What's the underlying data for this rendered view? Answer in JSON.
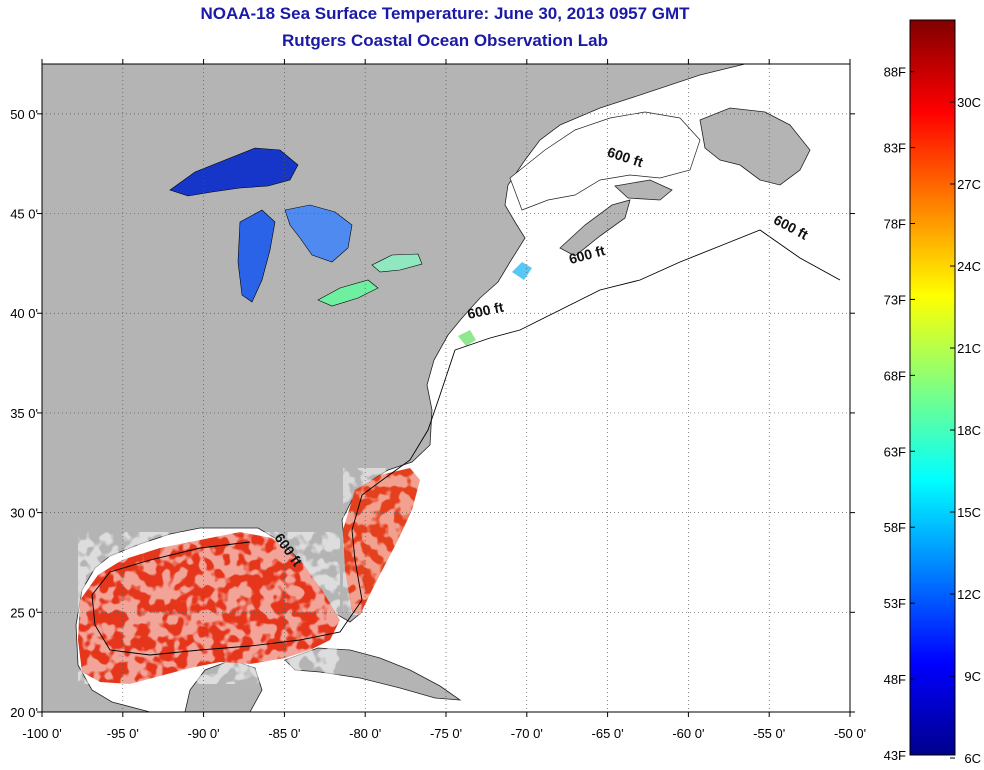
{
  "title": {
    "line1": "NOAA-18 Sea Surface Temperature:  June 30, 2013 0957 GMT",
    "line2": "Rutgers Coastal Ocean Observation Lab"
  },
  "map": {
    "lon_range": [
      -100,
      -50
    ],
    "lat_range": [
      20,
      52.5
    ],
    "x_ticks": [
      {
        "lon": -100,
        "label": "-100 0'"
      },
      {
        "lon": -95,
        "label": "-95 0'"
      },
      {
        "lon": -90,
        "label": "-90 0'"
      },
      {
        "lon": -85,
        "label": "-85 0'"
      },
      {
        "lon": -80,
        "label": "-80 0'"
      },
      {
        "lon": -75,
        "label": "-75 0'"
      },
      {
        "lon": -70,
        "label": "-70 0'"
      },
      {
        "lon": -65,
        "label": "-65 0'"
      },
      {
        "lon": -60,
        "label": "-60 0'"
      },
      {
        "lon": -55,
        "label": "-55 0'"
      },
      {
        "lon": -50,
        "label": "-50 0'"
      }
    ],
    "y_ticks": [
      {
        "lat": 20,
        "label": "20 0'"
      },
      {
        "lat": 25,
        "label": "25 0'"
      },
      {
        "lat": 30,
        "label": "30 0'"
      },
      {
        "lat": 35,
        "label": "35 0'"
      },
      {
        "lat": 40,
        "label": "40 0'"
      },
      {
        "lat": 45,
        "label": "45 0'"
      },
      {
        "lat": 50,
        "label": "50 0'"
      }
    ],
    "grid": "dotted",
    "land_color": "#b4b4b4",
    "ocean_color": "#ffffff",
    "contour_labels": [
      {
        "text": "600 ft",
        "lon": -64.0,
        "lat": 47.6,
        "angle": 18
      },
      {
        "text": "600 ft",
        "lon": -53.8,
        "lat": 44.1,
        "angle": 28
      },
      {
        "text": "600 ft",
        "lon": -66.2,
        "lat": 42.7,
        "angle": -15
      },
      {
        "text": "600 ft",
        "lon": -72.5,
        "lat": 39.9,
        "angle": -12
      },
      {
        "text": "600 ft",
        "lon": -85.0,
        "lat": 28.0,
        "angle": 55
      }
    ]
  },
  "colorbar": {
    "min_f": 43,
    "max_f": 91.4,
    "colors": [
      "#00008b",
      "#0000ff",
      "#0080ff",
      "#00ffff",
      "#80ff80",
      "#ffff00",
      "#ff8000",
      "#ff0000",
      "#800000"
    ],
    "f_labels": [
      {
        "value": 88,
        "label": "88F"
      },
      {
        "value": 83,
        "label": "83F"
      },
      {
        "value": 78,
        "label": "78F"
      },
      {
        "value": 73,
        "label": "73F"
      },
      {
        "value": 68,
        "label": "68F"
      },
      {
        "value": 63,
        "label": "63F"
      },
      {
        "value": 58,
        "label": "58F"
      },
      {
        "value": 53,
        "label": "53F"
      },
      {
        "value": 48,
        "label": "48F"
      },
      {
        "value": 43,
        "label": "43F"
      }
    ],
    "c_labels": [
      {
        "value": 30,
        "label": "30C"
      },
      {
        "value": 27,
        "label": "27C"
      },
      {
        "value": 24,
        "label": "24C"
      },
      {
        "value": 21,
        "label": "21C"
      },
      {
        "value": 18,
        "label": "18C"
      },
      {
        "value": 15,
        "label": "15C"
      },
      {
        "value": 12,
        "label": "12C"
      },
      {
        "value": 9,
        "label": "9C"
      },
      {
        "value": 6,
        "label": "6C"
      }
    ]
  }
}
